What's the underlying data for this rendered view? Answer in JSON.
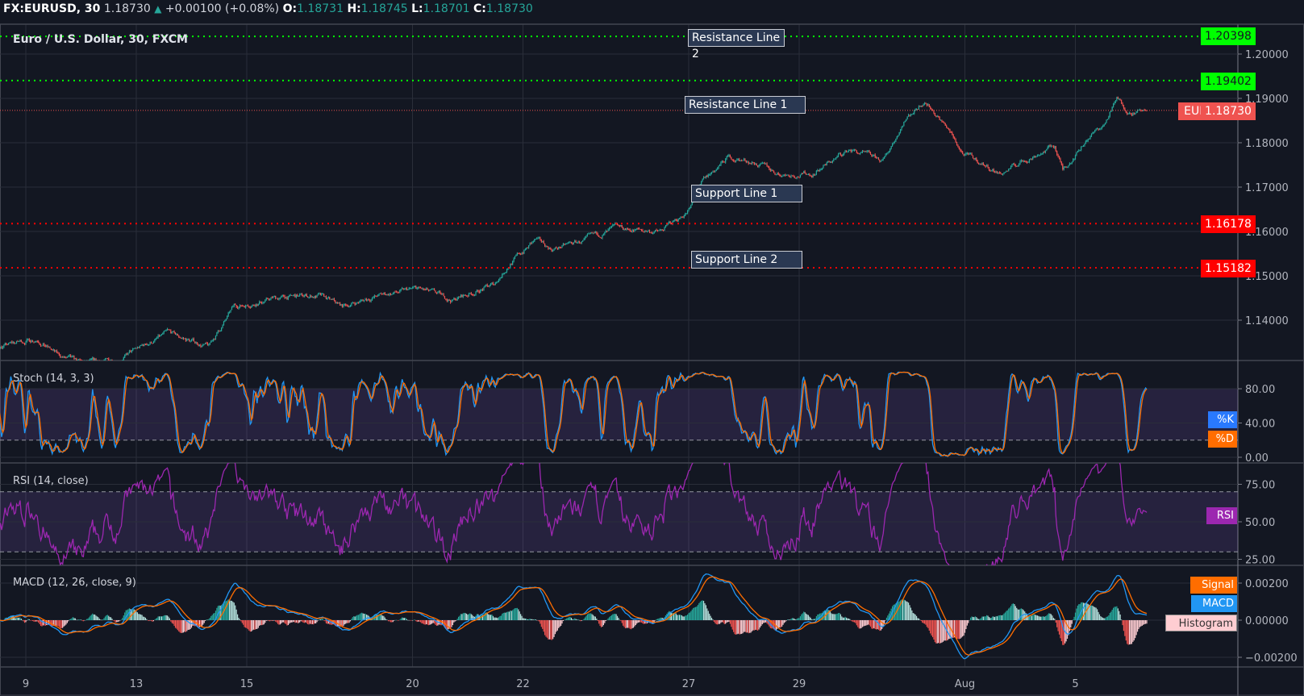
{
  "header": {
    "symbol": "FX:EURUSD, 30",
    "last": "1.18730",
    "change": "+0.00100 (+0.08%)",
    "o_label": "O:",
    "o": "1.18731",
    "h_label": "H:",
    "h": "1.18745",
    "l_label": "L:",
    "l": "1.18701",
    "c_label": "C:",
    "c": "1.18730",
    "direction_icon": "triangle-up-icon"
  },
  "main": {
    "title": "Euro / U.S. Dollar, 30, FXCM",
    "price_ticks": [
      "1.20000",
      "1.19000",
      "1.18000",
      "1.17000",
      "1.16000",
      "1.15000",
      "1.14000"
    ],
    "current_symbol_label": "EURUSD",
    "current_price": "1.18730",
    "levels": [
      {
        "name": "Resistance Line 2",
        "price": "1.20398",
        "color": "#00ff00"
      },
      {
        "name": "Resistance Line 1",
        "price": "1.19402",
        "color": "#00ff00"
      },
      {
        "name": "Support Line 1",
        "price": "1.16178",
        "color": "#ff0000"
      },
      {
        "name": "Support Line 2",
        "price": "1.15182",
        "color": "#ff0000"
      }
    ]
  },
  "stoch": {
    "title": "Stoch (14, 3, 3)",
    "ticks": [
      "80.00",
      "40.00",
      "0.00"
    ],
    "k_label": "%K",
    "d_label": "%D"
  },
  "rsi": {
    "title": "RSI (14, close)",
    "ticks": [
      "75.00",
      "50.00",
      "25.00"
    ],
    "label": "RSI"
  },
  "macd": {
    "title": "MACD (12, 26, close, 9)",
    "ticks": [
      "0.00200",
      "0.00000",
      "−0.00200"
    ],
    "signal_label": "Signal",
    "macd_label": "MACD",
    "hist_label": "Histogram"
  },
  "time_axis": [
    "9",
    "13",
    "15",
    "20",
    "22",
    "27",
    "29",
    "Aug",
    "5"
  ],
  "colors": {
    "background": "#131722",
    "up": "#26a69a",
    "down": "#ef5350",
    "k": "#2196f3",
    "d": "#ff6d00",
    "rsi": "#9c27b0",
    "macd": "#2196f3",
    "signal": "#ff6d00"
  },
  "chart_data": {
    "type": "candlestick",
    "interval": "30",
    "approx_close_path": [
      [
        "Jul 8 14:30",
        1.1342
      ],
      [
        "Jul 9 05:00",
        1.136
      ],
      [
        "Jul 9 14:00",
        1.132
      ],
      [
        "Jul 10 01:00",
        1.13
      ],
      [
        "Jul 10 15:30",
        1.131
      ],
      [
        "Jul 13 13:30",
        1.137
      ],
      [
        "Jul 14 07:30",
        1.134
      ],
      [
        "Jul 14 18:30",
        1.143
      ],
      [
        "Jul 15 12:30",
        1.145
      ],
      [
        "Jul 16 07:00",
        1.1455
      ],
      [
        "Jul 16 17:30",
        1.143
      ],
      [
        "Jul 17 08:30",
        1.1455
      ],
      [
        "Jul 20 02:30",
        1.147
      ],
      [
        "Jul 20 17:00",
        1.1445
      ],
      [
        "Jul 21 11:30",
        1.148
      ],
      [
        "Jul 21 18:30",
        1.153
      ],
      [
        "Jul 22 05:30",
        1.158
      ],
      [
        "Jul 22 12:30",
        1.156
      ],
      [
        "Jul 23 03:30",
        1.158
      ],
      [
        "Jul 23 16:00",
        1.1605
      ],
      [
        "Jul 24 12:00",
        1.16
      ],
      [
        "Jul 27 00:30",
        1.165
      ],
      [
        "Jul 27 06:00",
        1.171
      ],
      [
        "Jul 27 17:00",
        1.1766
      ],
      [
        "Jul 28 04:00",
        1.1757
      ],
      [
        "Jul 28 15:00",
        1.173
      ],
      [
        "Jul 29 05:30",
        1.173
      ],
      [
        "Jul 29 22:00",
        1.1785
      ],
      [
        "Jul 30 12:30",
        1.1757
      ],
      [
        "Jul 30 21:30",
        1.185
      ],
      [
        "Jul 31 06:30",
        1.1898
      ],
      [
        "Jul 31 15:30",
        1.184
      ],
      [
        "Jul 31 23:00",
        1.1775
      ],
      [
        "Aug 3 15:30",
        1.173
      ],
      [
        "Aug 4 04:00",
        1.1766
      ],
      [
        "Aug 4 15:00",
        1.1794
      ],
      [
        "Aug 4 18:30",
        1.1738
      ],
      [
        "Aug 5 05:30",
        1.1813
      ],
      [
        "Aug 5 12:30",
        1.184
      ],
      [
        "Aug 5 18:00",
        1.1898
      ],
      [
        "Aug 5 23:30",
        1.187
      ],
      [
        "Aug 6 07:00",
        1.1873
      ]
    ],
    "price_range": [
      1.13,
      1.206
    ],
    "indicators": [
      "Stoch (14, 3, 3)",
      "RSI (14, close)",
      "MACD (12, 26, close, 9)"
    ],
    "stoch_bands": [
      20,
      80
    ],
    "rsi_bands": [
      30,
      70
    ]
  }
}
